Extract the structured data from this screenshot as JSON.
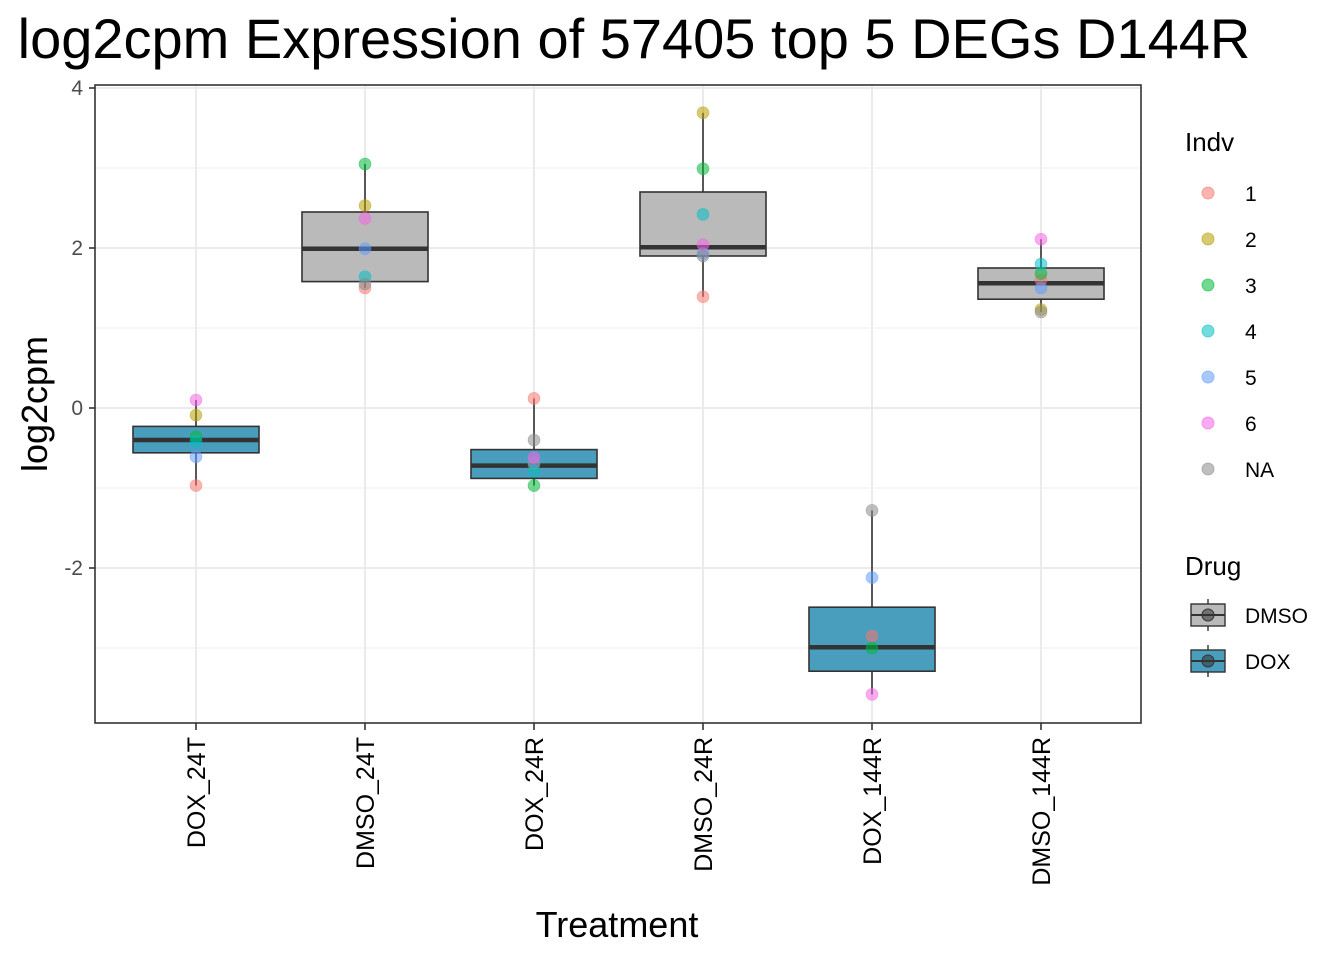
{
  "chart_data": {
    "type": "boxplot",
    "title": "log2cpm Expression of 57405 top 5 DEGs D144R",
    "xlabel": "Treatment",
    "ylabel": "log2cpm",
    "ylim": [
      -3.9,
      4.05
    ],
    "yticks": [
      -2,
      0,
      2,
      4
    ],
    "ytick_labels": [
      "-2",
      "0",
      "2",
      "4"
    ],
    "grid": true,
    "categories": [
      "DOX_24T",
      "DMSO_24T",
      "DOX_24R",
      "DMSO_24R",
      "DOX_144R",
      "DMSO_144R"
    ],
    "boxes": [
      {
        "category": "DOX_24T",
        "drug": "DOX",
        "q1": -0.56,
        "median": -0.4,
        "q3": -0.23,
        "whisker_low": -0.97,
        "whisker_high": 0.1
      },
      {
        "category": "DMSO_24T",
        "drug": "DMSO",
        "q1": 1.58,
        "median": 1.99,
        "q3": 2.45,
        "whisker_low": 1.5,
        "whisker_high": 3.05
      },
      {
        "category": "DOX_24R",
        "drug": "DOX",
        "q1": -0.88,
        "median": -0.72,
        "q3": -0.52,
        "whisker_low": -0.97,
        "whisker_high": 0.12
      },
      {
        "category": "DMSO_24R",
        "drug": "DMSO",
        "q1": 1.9,
        "median": 2.01,
        "q3": 2.7,
        "whisker_low": 1.39,
        "whisker_high": 3.69
      },
      {
        "category": "DOX_144R",
        "drug": "DOX",
        "q1": -3.29,
        "median": -2.99,
        "q3": -2.49,
        "whisker_low": -3.58,
        "whisker_high": -1.28
      },
      {
        "category": "DMSO_144R",
        "drug": "DMSO",
        "q1": 1.36,
        "median": 1.56,
        "q3": 1.75,
        "whisker_low": 1.2,
        "whisker_high": 2.11
      }
    ],
    "points": [
      {
        "category": "DOX_24T",
        "indv": "1",
        "y": -0.97
      },
      {
        "category": "DOX_24T",
        "indv": "2",
        "y": -0.09
      },
      {
        "category": "DOX_24T",
        "indv": "3",
        "y": -0.36
      },
      {
        "category": "DOX_24T",
        "indv": "4",
        "y": -0.42
      },
      {
        "category": "DOX_24T",
        "indv": "5",
        "y": -0.61
      },
      {
        "category": "DOX_24T",
        "indv": "6",
        "y": 0.1
      },
      {
        "category": "DMSO_24T",
        "indv": "1",
        "y": 1.5
      },
      {
        "category": "DMSO_24T",
        "indv": "2",
        "y": 2.53
      },
      {
        "category": "DMSO_24T",
        "indv": "3",
        "y": 3.05
      },
      {
        "category": "DMSO_24T",
        "indv": "4",
        "y": 1.64
      },
      {
        "category": "DMSO_24T",
        "indv": "5",
        "y": 1.99
      },
      {
        "category": "DMSO_24T",
        "indv": "6",
        "y": 2.37
      },
      {
        "category": "DMSO_24T",
        "indv": "NA",
        "y": 1.55
      },
      {
        "category": "DOX_24R",
        "indv": "1",
        "y": 0.12
      },
      {
        "category": "DOX_24R",
        "indv": "2",
        "y": -0.7
      },
      {
        "category": "DOX_24R",
        "indv": "3",
        "y": -0.97
      },
      {
        "category": "DOX_24R",
        "indv": "4",
        "y": -0.78
      },
      {
        "category": "DOX_24R",
        "indv": "5",
        "y": -0.68
      },
      {
        "category": "DOX_24R",
        "indv": "6",
        "y": -0.62
      },
      {
        "category": "DOX_24R",
        "indv": "NA",
        "y": -0.4
      },
      {
        "category": "DMSO_24R",
        "indv": "1",
        "y": 1.39
      },
      {
        "category": "DMSO_24R",
        "indv": "2",
        "y": 3.69
      },
      {
        "category": "DMSO_24R",
        "indv": "3",
        "y": 2.99
      },
      {
        "category": "DMSO_24R",
        "indv": "4",
        "y": 2.42
      },
      {
        "category": "DMSO_24R",
        "indv": "5",
        "y": 1.93
      },
      {
        "category": "DMSO_24R",
        "indv": "6",
        "y": 2.04
      },
      {
        "category": "DMSO_24R",
        "indv": "NA",
        "y": 1.9
      },
      {
        "category": "DOX_144R",
        "indv": "1",
        "y": -2.85
      },
      {
        "category": "DOX_144R",
        "indv": "3",
        "y": -3.0
      },
      {
        "category": "DOX_144R",
        "indv": "5",
        "y": -2.12
      },
      {
        "category": "DOX_144R",
        "indv": "6",
        "y": -3.58
      },
      {
        "category": "DOX_144R",
        "indv": "NA",
        "y": -1.28
      },
      {
        "category": "DMSO_144R",
        "indv": "1",
        "y": 1.6
      },
      {
        "category": "DMSO_144R",
        "indv": "2",
        "y": 1.23
      },
      {
        "category": "DMSO_144R",
        "indv": "3",
        "y": 1.68
      },
      {
        "category": "DMSO_144R",
        "indv": "4",
        "y": 1.8
      },
      {
        "category": "DMSO_144R",
        "indv": "5",
        "y": 1.5
      },
      {
        "category": "DMSO_144R",
        "indv": "6",
        "y": 2.11
      },
      {
        "category": "DMSO_144R",
        "indv": "NA",
        "y": 1.2
      }
    ],
    "legend_indv": {
      "title": "Indv",
      "entries": [
        {
          "label": "1",
          "color": "#F8766D"
        },
        {
          "label": "2",
          "color": "#B79F00"
        },
        {
          "label": "3",
          "color": "#00BA38"
        },
        {
          "label": "4",
          "color": "#00BFC4"
        },
        {
          "label": "5",
          "color": "#619CFF"
        },
        {
          "label": "6",
          "color": "#F564E3"
        },
        {
          "label": "NA",
          "color": "#8A8A8A"
        }
      ]
    },
    "legend_drug": {
      "title": "Drug",
      "entries": [
        {
          "label": "DMSO",
          "color": "#BABABA"
        },
        {
          "label": "DOX",
          "color": "#499EBD"
        }
      ]
    },
    "legend_placement": "right"
  }
}
